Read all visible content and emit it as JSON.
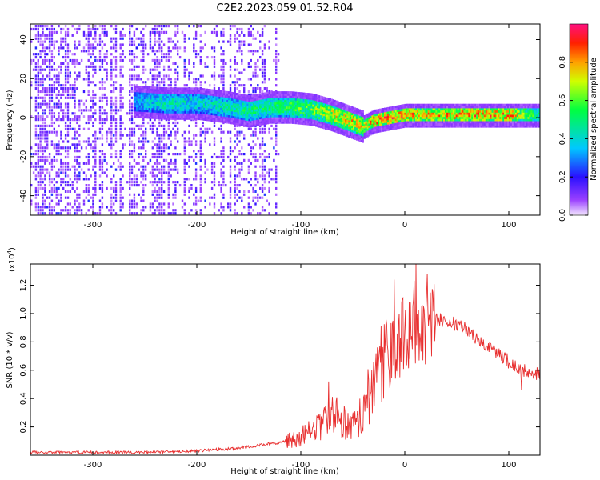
{
  "title": "C2E2.2023.059.01.52.R04",
  "colors": {
    "snr_line": "#e83030",
    "spectrogram_noise": "#6a00e0",
    "spectrogram_core": "#00e0c0",
    "spectrogram_peak": "#ff2000"
  },
  "chart_data": [
    {
      "type": "heatmap",
      "xlabel": "Height of straight line (km)",
      "ylabel": "Frequency (Hz)",
      "xlim": [
        -360,
        130
      ],
      "ylim": [
        -50,
        48
      ],
      "x_ticks": [
        -300,
        -200,
        -100,
        0,
        100
      ],
      "y_ticks": [
        -40,
        -20,
        0,
        20,
        40
      ],
      "colorbar": {
        "label": "Normalized spectral amplitude",
        "range": [
          0.0,
          1.0
        ],
        "ticks": [
          "0.0",
          "0.2",
          "0.4",
          "0.6",
          "0.8"
        ],
        "colormap": "rainbow (purple-blue-cyan-green-yellow-red-magenta)"
      },
      "noise_region_x": [
        -360,
        -122
      ],
      "signal_track": {
        "x": [
          -260,
          -230,
          -200,
          -170,
          -150,
          -130,
          -110,
          -90,
          -70,
          -50,
          -40,
          -30,
          -10,
          0,
          20,
          60,
          100,
          130
        ],
        "y": [
          8,
          7,
          7,
          5,
          3,
          5,
          5,
          4,
          1,
          -3,
          -5,
          -2,
          0,
          1,
          1,
          1,
          1,
          1
        ],
        "peak_amplitude": [
          0.35,
          0.45,
          0.4,
          0.45,
          0.5,
          0.5,
          0.55,
          0.6,
          0.7,
          0.75,
          0.7,
          0.8,
          0.85,
          0.8,
          0.75,
          0.8,
          0.8,
          0.45
        ]
      }
    },
    {
      "type": "line",
      "xlabel": "Height of straight line (km)",
      "ylabel": "SNR (10 * v/v)",
      "y_exponent": "(x10",
      "y_exponent_power": "4",
      "y_exponent_close": ")",
      "xlim": [
        -360,
        130
      ],
      "ylim": [
        0,
        1.35
      ],
      "x_ticks": [
        -300,
        -200,
        -100,
        0,
        100
      ],
      "y_ticks": [
        "0.2",
        "0.4",
        "0.6",
        "0.8",
        "1.0",
        "1.2"
      ],
      "series": [
        {
          "x": [
            -360,
            -300,
            -250,
            -200,
            -180,
            -160,
            -140,
            -120,
            -100,
            -80,
            -70,
            -60,
            -50,
            -40,
            -30,
            -20,
            -10,
            0,
            10,
            20,
            30,
            40,
            50,
            60,
            70,
            80,
            90,
            100,
            110,
            120,
            130
          ],
          "y": [
            0.02,
            0.02,
            0.02,
            0.03,
            0.04,
            0.05,
            0.07,
            0.09,
            0.13,
            0.2,
            0.3,
            0.25,
            0.2,
            0.3,
            0.55,
            0.7,
            0.75,
            0.85,
            0.92,
            0.95,
            0.96,
            0.95,
            0.93,
            0.88,
            0.82,
            0.77,
            0.72,
            0.66,
            0.61,
            0.59,
            0.57
          ],
          "spikes": [
            {
              "x": -73,
              "y": 0.52
            },
            {
              "x": -28,
              "y": 0.62
            },
            {
              "x": -10,
              "y": 1.24
            },
            {
              "x": -3,
              "y": 1.08
            },
            {
              "x": 11,
              "y": 1.35
            },
            {
              "x": 18,
              "y": 1.05
            },
            {
              "x": 97,
              "y": 0.73
            },
            {
              "x": 112,
              "y": 0.46
            }
          ]
        }
      ]
    }
  ]
}
